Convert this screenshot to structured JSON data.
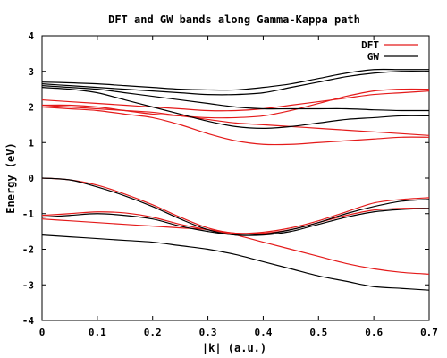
{
  "chart_data": {
    "type": "line",
    "title": "DFT and GW bands along Gamma-Kappa path",
    "xlabel": "|k| (a.u.)",
    "ylabel": "Energy (eV)",
    "xlim": [
      0,
      0.7
    ],
    "ylim": [
      -4,
      4
    ],
    "grid": false,
    "legend_position": "top-right",
    "x_ticks": [
      "0",
      "0.1",
      "0.2",
      "0.3",
      "0.4",
      "0.5",
      "0.6",
      "0.7"
    ],
    "y_ticks": [
      "-4",
      "-3",
      "-2",
      "-1",
      "0",
      "1",
      "2",
      "3",
      "4"
    ],
    "x_tick_values": [
      0,
      0.1,
      0.2,
      0.3,
      0.4,
      0.5,
      0.6,
      0.7
    ],
    "y_tick_values": [
      -4,
      -3,
      -2,
      -1,
      0,
      1,
      2,
      3,
      4
    ],
    "x": [
      0,
      0.05,
      0.1,
      0.15,
      0.2,
      0.25,
      0.3,
      0.35,
      0.4,
      0.45,
      0.5,
      0.55,
      0.6,
      0.65,
      0.7
    ],
    "series": [
      {
        "name": "DFT",
        "color": "#e41a1a",
        "bands": [
          [
            0.0,
            -0.05,
            -0.2,
            -0.45,
            -0.75,
            -1.1,
            -1.4,
            -1.55,
            -1.52,
            -1.4,
            -1.2,
            -0.95,
            -0.7,
            -0.6,
            -0.55
          ],
          [
            -1.05,
            -1.0,
            -0.95,
            -0.98,
            -1.1,
            -1.3,
            -1.45,
            -1.55,
            -1.55,
            -1.45,
            -1.25,
            -1.05,
            -0.9,
            -0.85,
            -0.85
          ],
          [
            -1.15,
            -1.2,
            -1.25,
            -1.3,
            -1.35,
            -1.4,
            -1.45,
            -1.6,
            -1.8,
            -2.0,
            -2.2,
            -2.4,
            -2.55,
            -2.65,
            -2.7
          ],
          [
            2.0,
            1.95,
            1.9,
            1.8,
            1.7,
            1.5,
            1.25,
            1.05,
            0.95,
            0.95,
            1.0,
            1.05,
            1.1,
            1.15,
            1.15
          ],
          [
            2.05,
            2.0,
            1.95,
            1.9,
            1.85,
            1.75,
            1.65,
            1.55,
            1.5,
            1.45,
            1.4,
            1.35,
            1.3,
            1.25,
            1.2
          ],
          [
            2.05,
            2.05,
            2.0,
            1.9,
            1.8,
            1.75,
            1.7,
            1.7,
            1.75,
            1.9,
            2.1,
            2.3,
            2.45,
            2.5,
            2.5
          ],
          [
            2.2,
            2.15,
            2.1,
            2.05,
            2.0,
            1.95,
            1.9,
            1.9,
            1.95,
            2.05,
            2.15,
            2.25,
            2.35,
            2.4,
            2.45
          ]
        ]
      },
      {
        "name": "GW",
        "color": "#000000",
        "bands": [
          [
            0.0,
            -0.05,
            -0.25,
            -0.5,
            -0.8,
            -1.15,
            -1.45,
            -1.6,
            -1.58,
            -1.45,
            -1.25,
            -1.0,
            -0.8,
            -0.65,
            -0.6
          ],
          [
            -1.1,
            -1.05,
            -1.0,
            -1.05,
            -1.15,
            -1.35,
            -1.5,
            -1.6,
            -1.6,
            -1.5,
            -1.3,
            -1.1,
            -0.95,
            -0.88,
            -0.85
          ],
          [
            -1.6,
            -1.65,
            -1.7,
            -1.75,
            -1.8,
            -1.9,
            -2.0,
            -2.15,
            -2.35,
            -2.55,
            -2.75,
            -2.9,
            -3.05,
            -3.1,
            -3.15
          ],
          [
            2.55,
            2.5,
            2.4,
            2.2,
            2.0,
            1.8,
            1.6,
            1.45,
            1.4,
            1.45,
            1.55,
            1.65,
            1.7,
            1.75,
            1.75
          ],
          [
            2.6,
            2.55,
            2.5,
            2.4,
            2.3,
            2.2,
            2.1,
            2.0,
            1.95,
            1.95,
            1.95,
            1.95,
            1.92,
            1.9,
            1.9
          ],
          [
            2.65,
            2.6,
            2.55,
            2.5,
            2.45,
            2.4,
            2.35,
            2.35,
            2.4,
            2.55,
            2.7,
            2.85,
            2.95,
            3.0,
            3.0
          ],
          [
            2.7,
            2.68,
            2.65,
            2.6,
            2.55,
            2.5,
            2.48,
            2.48,
            2.55,
            2.65,
            2.8,
            2.95,
            3.05,
            3.05,
            3.05
          ]
        ]
      }
    ]
  }
}
